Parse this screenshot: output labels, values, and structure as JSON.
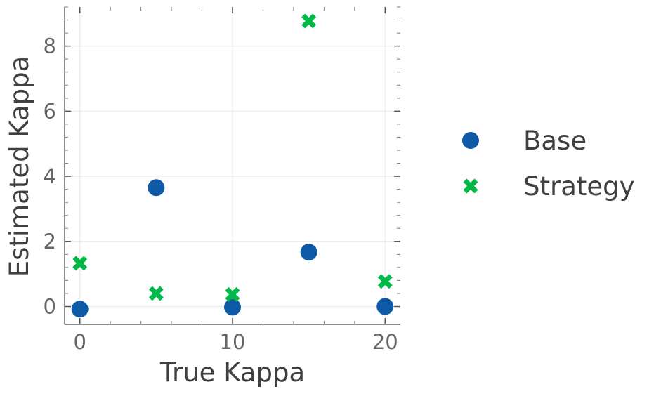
{
  "chart_data": {
    "type": "scatter",
    "xlabel": "True Kappa",
    "ylabel": "Estimated Kappa",
    "xlim": [
      -1,
      21
    ],
    "ylim": [
      -0.55,
      9.2
    ],
    "xticks": [
      0,
      10,
      20
    ],
    "yticks": [
      0,
      2,
      4,
      6,
      8
    ],
    "x_minor_step": 2,
    "y_minor_step": 0.4,
    "grid": true,
    "legend_position": "right",
    "series": [
      {
        "name": "Base",
        "marker": "circle",
        "color": "#0e5aa7",
        "points": [
          {
            "x": 0,
            "y": -0.08
          },
          {
            "x": 5,
            "y": 3.65
          },
          {
            "x": 10,
            "y": -0.02
          },
          {
            "x": 15,
            "y": 1.67
          },
          {
            "x": 20,
            "y": 0.0
          }
        ]
      },
      {
        "name": "Strategy",
        "marker": "x",
        "color": "#00b847",
        "points": [
          {
            "x": 0,
            "y": 1.33
          },
          {
            "x": 5,
            "y": 0.4
          },
          {
            "x": 10,
            "y": 0.37
          },
          {
            "x": 15,
            "y": 8.77
          },
          {
            "x": 20,
            "y": 0.77
          }
        ]
      }
    ]
  }
}
